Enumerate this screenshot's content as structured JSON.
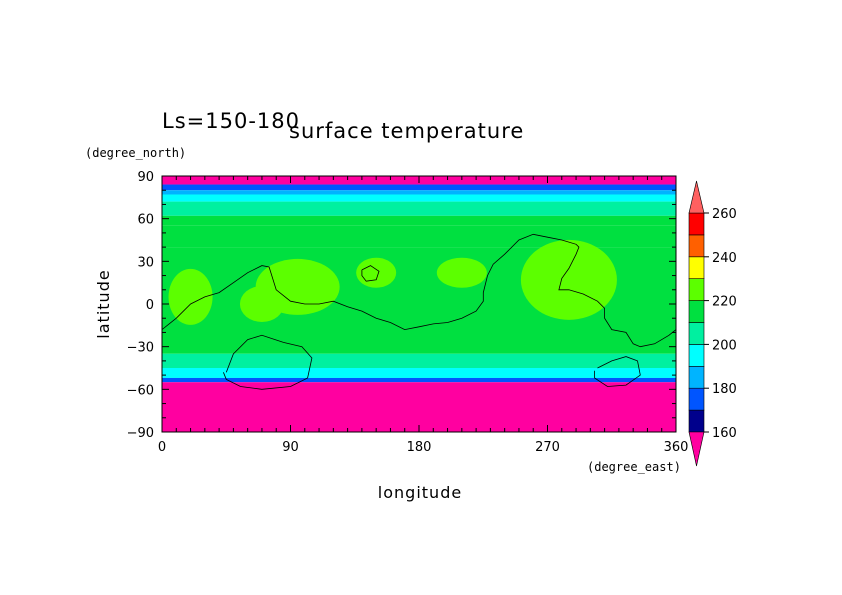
{
  "chart_data": {
    "type": "heatmap",
    "title": "surface temperature",
    "subtitle": "Ls=150-180",
    "xlabel": "longitude",
    "ylabel": "latitude",
    "x_units": "(degree_east)",
    "y_units": "(degree_north)",
    "xlim": [
      0,
      360
    ],
    "ylim": [
      -90,
      90
    ],
    "x_ticks": [
      0,
      90,
      180,
      270,
      360
    ],
    "y_ticks": [
      90,
      60,
      30,
      0,
      -30,
      -60,
      -90
    ],
    "x_tick_labels": [
      "0",
      "90",
      "180",
      "270",
      "360"
    ],
    "y_tick_labels": [
      "90",
      "60",
      "30",
      "0",
      "−30",
      "−60",
      "−90"
    ],
    "colorbar": {
      "levels": [
        160,
        170,
        180,
        190,
        200,
        210,
        220,
        230,
        240,
        250,
        260
      ],
      "tick_labels": [
        "160",
        "180",
        "200",
        "220",
        "240",
        "260"
      ],
      "colors": [
        "#ff00a0",
        "#00008c",
        "#0055ff",
        "#00b4ff",
        "#00ffff",
        "#00f0a0",
        "#00e040",
        "#5cff00",
        "#ffff00",
        "#ff6000",
        "#ff0000",
        "#ff6060"
      ],
      "extend": "both"
    },
    "latitude_bands": [
      {
        "lat_from": 84,
        "lat_to": 90,
        "value": 150
      },
      {
        "lat_from": 80,
        "lat_to": 84,
        "value": 175
      },
      {
        "lat_from": 77,
        "lat_to": 80,
        "value": 185
      },
      {
        "lat_from": 72,
        "lat_to": 77,
        "value": 195
      },
      {
        "lat_from": 62,
        "lat_to": 72,
        "value": 205
      },
      {
        "lat_from": 55,
        "lat_to": 62,
        "value": 210
      },
      {
        "lat_from": 40,
        "lat_to": 55,
        "value": 215
      },
      {
        "lat_from": -35,
        "lat_to": 40,
        "value": 218
      },
      {
        "lat_from": -45,
        "lat_to": -35,
        "value": 205
      },
      {
        "lat_from": -52,
        "lat_to": -45,
        "value": 195
      },
      {
        "lat_from": -55,
        "lat_to": -52,
        "value": 175
      },
      {
        "lat_from": -90,
        "lat_to": -55,
        "value": 150
      }
    ],
    "warm_regions": [
      {
        "lon": 285,
        "lat": 17,
        "value": 225
      },
      {
        "lon": 95,
        "lat": 12,
        "value": 225
      },
      {
        "lon": 150,
        "lat": 22,
        "value": 223
      },
      {
        "lon": 210,
        "lat": 22,
        "value": 223
      },
      {
        "lon": 20,
        "lat": 5,
        "value": 223
      },
      {
        "lon": 70,
        "lat": 0,
        "value": 223
      }
    ],
    "contour_lines": [
      [
        [
          0,
          -18
        ],
        [
          10,
          -10
        ],
        [
          20,
          0
        ],
        [
          30,
          5
        ],
        [
          40,
          8
        ],
        [
          50,
          15
        ],
        [
          60,
          22
        ],
        [
          70,
          27
        ],
        [
          75,
          26
        ],
        [
          80,
          10
        ],
        [
          90,
          2
        ],
        [
          100,
          0
        ],
        [
          110,
          0
        ],
        [
          120,
          2
        ],
        [
          130,
          -2
        ],
        [
          140,
          -5
        ],
        [
          150,
          -10
        ],
        [
          160,
          -13
        ],
        [
          170,
          -18
        ],
        [
          180,
          -16
        ],
        [
          190,
          -14
        ],
        [
          200,
          -13
        ],
        [
          210,
          -10
        ],
        [
          220,
          -5
        ],
        [
          225,
          2
        ],
        [
          225,
          8
        ],
        [
          228,
          20
        ],
        [
          232,
          28
        ],
        [
          240,
          35
        ],
        [
          250,
          45
        ],
        [
          260,
          49
        ],
        [
          270,
          47
        ],
        [
          280,
          45
        ],
        [
          290,
          42
        ],
        [
          292,
          40
        ],
        [
          290,
          35
        ],
        [
          285,
          25
        ],
        [
          280,
          18
        ],
        [
          278,
          10
        ],
        [
          285,
          10
        ],
        [
          295,
          7
        ],
        [
          305,
          2
        ],
        [
          310,
          -3
        ],
        [
          310,
          -10
        ],
        [
          315,
          -18
        ],
        [
          325,
          -20
        ],
        [
          330,
          -28
        ],
        [
          335,
          -30
        ],
        [
          345,
          -28
        ],
        [
          355,
          -22
        ],
        [
          360,
          -18
        ]
      ],
      [
        [
          45,
          -48
        ],
        [
          50,
          -35
        ],
        [
          60,
          -25
        ],
        [
          70,
          -22
        ],
        [
          85,
          -27
        ],
        [
          98,
          -30
        ],
        [
          105,
          -38
        ],
        [
          102,
          -52
        ],
        [
          90,
          -58
        ],
        [
          70,
          -60
        ],
        [
          55,
          -58
        ],
        [
          45,
          -53
        ],
        [
          43,
          -48
        ]
      ],
      [
        [
          140,
          24
        ],
        [
          146,
          27
        ],
        [
          152,
          23
        ],
        [
          150,
          17
        ],
        [
          143,
          16
        ],
        [
          140,
          20
        ],
        [
          140,
          24
        ]
      ],
      [
        [
          305,
          -45
        ],
        [
          315,
          -40
        ],
        [
          325,
          -37
        ],
        [
          333,
          -40
        ],
        [
          335,
          -50
        ],
        [
          325,
          -57
        ],
        [
          312,
          -58
        ],
        [
          303,
          -52
        ],
        [
          303,
          -47
        ]
      ]
    ]
  }
}
